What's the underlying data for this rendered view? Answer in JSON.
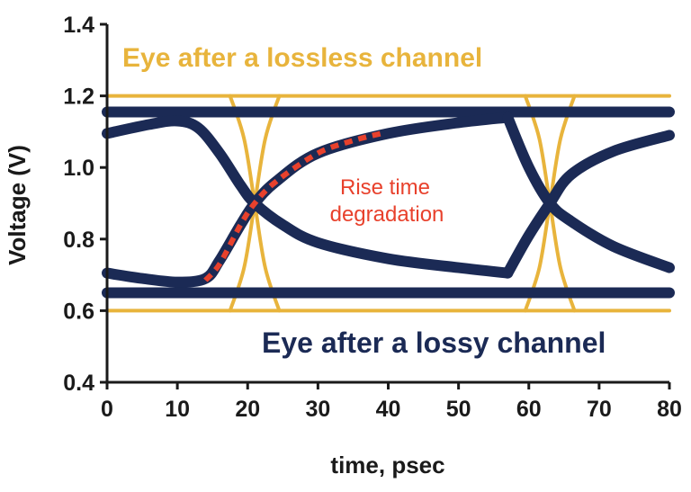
{
  "colors": {
    "lossless": "#e8b43c",
    "lossy": "#1b2a55",
    "rise": "#e8412c",
    "axis": "#1a1a1a"
  },
  "chart_data": {
    "type": "line",
    "xlabel": "time, psec",
    "ylabel": "Voltage (V)",
    "xlim": [
      0,
      80
    ],
    "ylim": [
      0.4,
      1.4
    ],
    "x_ticks": [
      "0",
      "10",
      "20",
      "30",
      "40",
      "50",
      "60",
      "70",
      "80"
    ],
    "y_ticks": [
      "0.4",
      "0.6",
      "0.8",
      "1.0",
      "1.2",
      "1.4"
    ],
    "grid": false,
    "series": [
      {
        "group": "lossless",
        "lines": [
          [
            [
              0,
              1.2
            ],
            [
              80,
              1.2
            ]
          ],
          [
            [
              0,
              0.6
            ],
            [
              80,
              0.6
            ]
          ],
          [
            [
              17.5,
              1.2
            ],
            [
              19.5,
              1.08
            ],
            [
              21,
              0.9
            ],
            [
              22.5,
              0.72
            ],
            [
              24.5,
              0.6
            ]
          ],
          [
            [
              24.5,
              1.2
            ],
            [
              22.5,
              1.08
            ],
            [
              21,
              0.9
            ],
            [
              19.5,
              0.72
            ],
            [
              17.5,
              0.6
            ]
          ],
          [
            [
              59.5,
              1.2
            ],
            [
              61.5,
              1.08
            ],
            [
              63,
              0.9
            ],
            [
              64.5,
              0.72
            ],
            [
              66.5,
              0.6
            ]
          ],
          [
            [
              66.5,
              1.2
            ],
            [
              64.5,
              1.08
            ],
            [
              63,
              0.9
            ],
            [
              61.5,
              0.72
            ],
            [
              59.5,
              0.6
            ]
          ]
        ]
      },
      {
        "group": "lossy",
        "lines": [
          [
            [
              0,
              1.155
            ],
            [
              80,
              1.155
            ]
          ],
          [
            [
              0,
              0.65
            ],
            [
              80,
              0.65
            ]
          ],
          [
            [
              0,
              1.095
            ],
            [
              6,
              1.12
            ],
            [
              10,
              1.13
            ],
            [
              13,
              1.11
            ],
            [
              16,
              1.04
            ],
            [
              19,
              0.95
            ],
            [
              21,
              0.9
            ],
            [
              25,
              0.84
            ],
            [
              30,
              0.79
            ],
            [
              40,
              0.745
            ],
            [
              50,
              0.72
            ],
            [
              57,
              0.705
            ]
          ],
          [
            [
              0,
              0.705
            ],
            [
              5,
              0.69
            ],
            [
              10,
              0.68
            ],
            [
              14,
              0.69
            ],
            [
              16,
              0.74
            ],
            [
              19,
              0.84
            ],
            [
              21,
              0.9
            ],
            [
              24,
              0.96
            ],
            [
              30,
              1.04
            ],
            [
              40,
              1.095
            ],
            [
              50,
              1.125
            ],
            [
              57,
              1.14
            ]
          ],
          [
            [
              57,
              1.14
            ],
            [
              60,
              1.0
            ],
            [
              63,
              0.9
            ],
            [
              66,
              0.85
            ],
            [
              72,
              0.78
            ],
            [
              80,
              0.72
            ]
          ],
          [
            [
              57,
              0.705
            ],
            [
              60,
              0.81
            ],
            [
              63,
              0.9
            ],
            [
              66,
              0.98
            ],
            [
              72,
              1.045
            ],
            [
              80,
              1.09
            ]
          ]
        ]
      },
      {
        "group": "rise",
        "lines": [
          [
            [
              14,
              0.685
            ],
            [
              16,
              0.73
            ],
            [
              19,
              0.84
            ],
            [
              21,
              0.9
            ],
            [
              24,
              0.96
            ],
            [
              30,
              1.04
            ],
            [
              35,
              1.075
            ],
            [
              39,
              1.095
            ]
          ]
        ]
      }
    ],
    "annotations": {
      "lossless_label": "Eye after a lossless channel",
      "lossy_label": "Eye after a lossy channel",
      "rise_line1": "Rise time",
      "rise_line2": "degradation"
    }
  }
}
